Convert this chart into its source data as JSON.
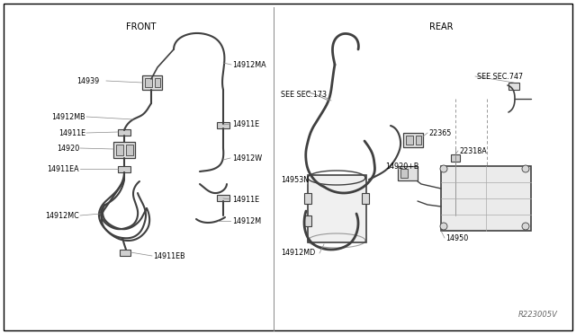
{
  "bg": "#ffffff",
  "lc": "#404040",
  "front_label": [
    0.245,
    0.915
  ],
  "rear_label": [
    0.645,
    0.915
  ],
  "watermark": [
    0.96,
    0.035
  ],
  "divider": 0.475
}
